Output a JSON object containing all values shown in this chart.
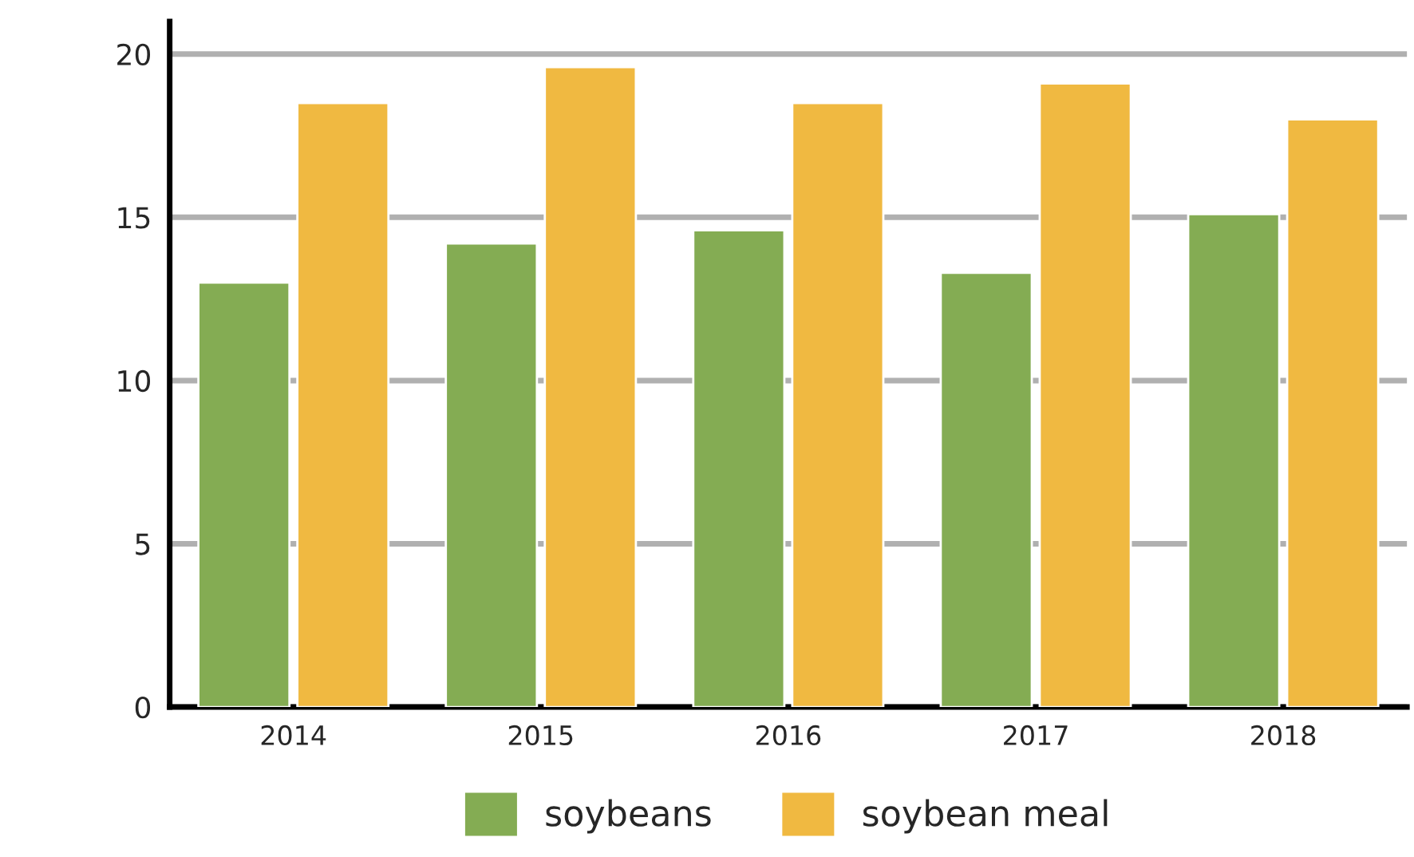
{
  "chart_data": {
    "type": "bar",
    "categories": [
      "2014",
      "2015",
      "2016",
      "2017",
      "2018"
    ],
    "series": [
      {
        "name": "soybeans",
        "color": "#84ac53",
        "values": [
          13.0,
          14.2,
          14.6,
          13.3,
          15.1
        ]
      },
      {
        "name": "soybean meal",
        "color": "#f0b941",
        "values": [
          18.5,
          19.6,
          18.5,
          19.1,
          18.0
        ]
      }
    ],
    "ylim": [
      0,
      21
    ],
    "yticks": [
      0,
      5,
      10,
      15,
      20
    ],
    "grid": "y",
    "legend": "bottom"
  }
}
